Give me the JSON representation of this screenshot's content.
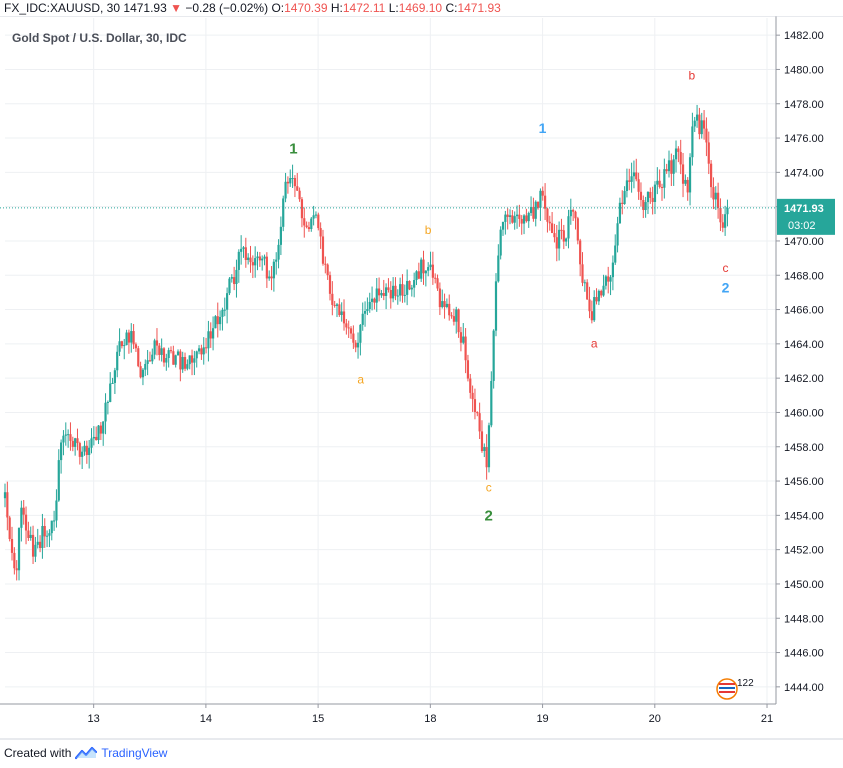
{
  "header": {
    "symbol": "FX_IDC:XAUUSD, 30",
    "last": "1471.93",
    "arrow": "▼",
    "change": "−0.28 (−0.02%)",
    "o_label": "O:",
    "o_value": "1470.39",
    "h_label": "H:",
    "h_value": "1472.11",
    "l_label": "L:",
    "l_value": "1469.10",
    "c_label": "C:",
    "c_value": "1471.93"
  },
  "footer": {
    "created_with": "Created with",
    "brand": "TradingView"
  },
  "colors": {
    "up": "#26a69a",
    "down": "#ef5350",
    "green_label": "#388e3c",
    "orange_label": "#f5a623",
    "blue_label": "#42a5f5",
    "red_label": "#e53935",
    "price_line": "#26a69a"
  },
  "chart_data": {
    "type": "candlestick",
    "title": "Gold Spot / U.S. Dollar, 30, IDC",
    "ylim": [
      1443,
      1483
    ],
    "y_ticks": [
      "1482.00",
      "1480.00",
      "1478.00",
      "1476.00",
      "1474.00",
      "1472.00",
      "1470.00",
      "1468.00",
      "1466.00",
      "1464.00",
      "1462.00",
      "1460.00",
      "1458.00",
      "1456.00",
      "1454.00",
      "1452.00",
      "1450.00",
      "1448.00",
      "1446.00",
      "1444.00"
    ],
    "x_ticks": [
      {
        "label": "13",
        "t": 2.0
      },
      {
        "label": "14",
        "t": 3.0
      },
      {
        "label": "15",
        "t": 4.0
      },
      {
        "label": "18",
        "t": 5.0
      },
      {
        "label": "19",
        "t": 6.0
      },
      {
        "label": "20",
        "t": 7.0
      },
      {
        "label": "21",
        "t": 8.0
      }
    ],
    "x_range": [
      1.21,
      8.08
    ],
    "last_price_label": "1471.93",
    "countdown": "03:02",
    "last_price": 1471.93,
    "badge": "122",
    "path": [
      {
        "t": 1.21,
        "p": 1455
      },
      {
        "t": 1.3,
        "p": 1450
      },
      {
        "t": 1.36,
        "p": 1455
      },
      {
        "t": 1.45,
        "p": 1452
      },
      {
        "t": 1.55,
        "p": 1453
      },
      {
        "t": 1.65,
        "p": 1454
      },
      {
        "t": 1.72,
        "p": 1459
      },
      {
        "t": 1.82,
        "p": 1458
      },
      {
        "t": 1.95,
        "p": 1458
      },
      {
        "t": 2.07,
        "p": 1459
      },
      {
        "t": 2.2,
        "p": 1463
      },
      {
        "t": 2.3,
        "p": 1465
      },
      {
        "t": 2.45,
        "p": 1462
      },
      {
        "t": 2.55,
        "p": 1464
      },
      {
        "t": 2.7,
        "p": 1463
      },
      {
        "t": 2.85,
        "p": 1463
      },
      {
        "t": 3.0,
        "p": 1464
      },
      {
        "t": 3.15,
        "p": 1466
      },
      {
        "t": 3.3,
        "p": 1469
      },
      {
        "t": 3.45,
        "p": 1469
      },
      {
        "t": 3.6,
        "p": 1468
      },
      {
        "t": 3.7,
        "p": 1473
      },
      {
        "t": 3.78,
        "p": 1473.5
      },
      {
        "t": 3.88,
        "p": 1471
      },
      {
        "t": 3.98,
        "p": 1471
      },
      {
        "t": 4.05,
        "p": 1469
      },
      {
        "t": 4.15,
        "p": 1466
      },
      {
        "t": 4.25,
        "p": 1465
      },
      {
        "t": 4.35,
        "p": 1464
      },
      {
        "t": 4.42,
        "p": 1466
      },
      {
        "t": 4.55,
        "p": 1467
      },
      {
        "t": 4.7,
        "p": 1467
      },
      {
        "t": 4.85,
        "p": 1468
      },
      {
        "t": 5.0,
        "p": 1469
      },
      {
        "t": 5.1,
        "p": 1466
      },
      {
        "t": 5.2,
        "p": 1466
      },
      {
        "t": 5.3,
        "p": 1464
      },
      {
        "t": 5.4,
        "p": 1460
      },
      {
        "t": 5.5,
        "p": 1457
      },
      {
        "t": 5.55,
        "p": 1463
      },
      {
        "t": 5.6,
        "p": 1469
      },
      {
        "t": 5.65,
        "p": 1471.5
      },
      {
        "t": 5.75,
        "p": 1471.5
      },
      {
        "t": 5.85,
        "p": 1471
      },
      {
        "t": 6.0,
        "p": 1473
      },
      {
        "t": 6.1,
        "p": 1470
      },
      {
        "t": 6.2,
        "p": 1470
      },
      {
        "t": 6.27,
        "p": 1472
      },
      {
        "t": 6.35,
        "p": 1468
      },
      {
        "t": 6.43,
        "p": 1465.5
      },
      {
        "t": 6.5,
        "p": 1467
      },
      {
        "t": 6.6,
        "p": 1468
      },
      {
        "t": 6.68,
        "p": 1472
      },
      {
        "t": 6.78,
        "p": 1474
      },
      {
        "t": 6.9,
        "p": 1472
      },
      {
        "t": 7.0,
        "p": 1473
      },
      {
        "t": 7.1,
        "p": 1474
      },
      {
        "t": 7.2,
        "p": 1475
      },
      {
        "t": 7.3,
        "p": 1473
      },
      {
        "t": 7.35,
        "p": 1477.5
      },
      {
        "t": 7.45,
        "p": 1476
      },
      {
        "t": 7.52,
        "p": 1473
      },
      {
        "t": 7.6,
        "p": 1470.5
      },
      {
        "t": 7.65,
        "p": 1471.93
      }
    ],
    "annotations": [
      {
        "text": "1",
        "t": 3.78,
        "p": 1475.1,
        "color": "#388e3c",
        "size": 15
      },
      {
        "text": "a",
        "t": 4.38,
        "p": 1461.7,
        "color": "#f5a623",
        "size": 12
      },
      {
        "text": "b",
        "t": 4.98,
        "p": 1470.4,
        "color": "#f5a623",
        "size": 12
      },
      {
        "text": "c",
        "t": 5.52,
        "p": 1455.4,
        "color": "#f5a623",
        "size": 12
      },
      {
        "text": "2",
        "t": 5.52,
        "p": 1453.7,
        "color": "#388e3c",
        "size": 15
      },
      {
        "text": "1",
        "t": 6.0,
        "p": 1476.3,
        "color": "#42a5f5",
        "size": 14
      },
      {
        "text": "a",
        "t": 6.46,
        "p": 1463.8,
        "color": "#e53935",
        "size": 12
      },
      {
        "text": "b",
        "t": 7.33,
        "p": 1479.4,
        "color": "#e53935",
        "size": 12
      },
      {
        "text": "c",
        "t": 7.63,
        "p": 1468.2,
        "color": "#e53935",
        "size": 12
      },
      {
        "text": "2",
        "t": 7.63,
        "p": 1467.0,
        "color": "#42a5f5",
        "size": 14
      }
    ]
  }
}
